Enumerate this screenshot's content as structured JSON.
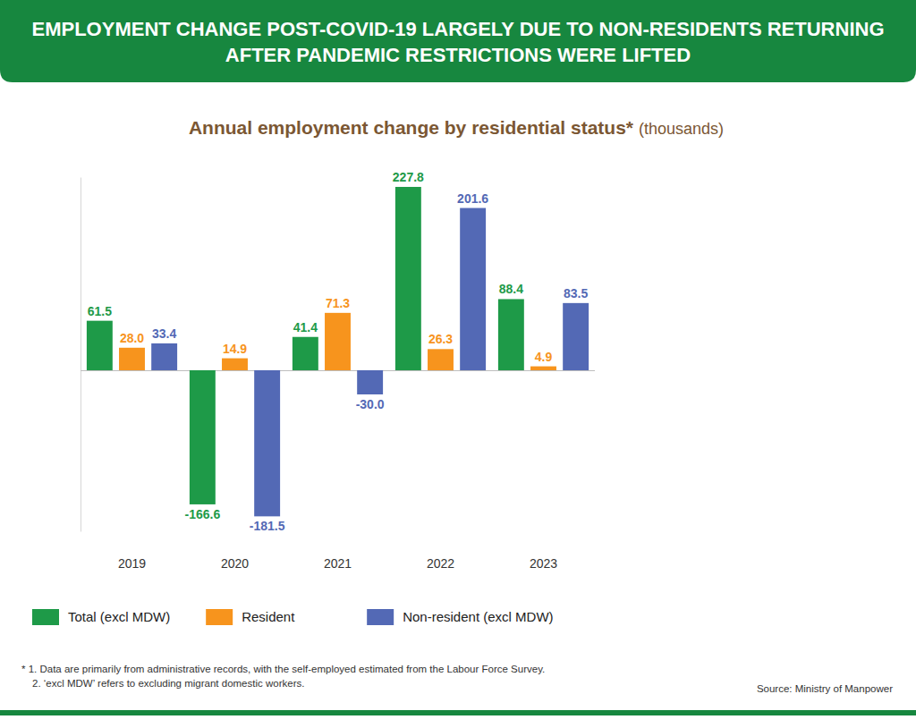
{
  "chart_data": {
    "type": "bar",
    "headline": "EMPLOYMENT CHANGE POST-COVID-19 LARGELY DUE TO NON-RESIDENTS RETURNING AFTER PANDEMIC RESTRICTIONS WERE LIFTED",
    "title": "Annual employment change by residential status*",
    "subtitle": "(thousands)",
    "categories": [
      "2019",
      "2020",
      "2021",
      "2022",
      "2023"
    ],
    "series": [
      {
        "name": "Total (excl MDW)",
        "color": "#1e9a48",
        "values": [
          61.5,
          -166.6,
          41.4,
          227.8,
          88.4
        ]
      },
      {
        "name": "Resident",
        "color": "#f7941d",
        "values": [
          28.0,
          14.9,
          71.3,
          26.3,
          4.9
        ],
        "value_labels": [
          "28.0",
          "14.9",
          "71.3",
          "26.3",
          "4.9"
        ]
      },
      {
        "name": "Non-resident (excl MDW)",
        "color": "#5369b5",
        "values": [
          33.4,
          -181.5,
          -30.0,
          201.6,
          83.5
        ],
        "value_labels": [
          "33.4",
          "-181.5",
          "-30.0",
          "201.6",
          "83.5"
        ]
      }
    ],
    "ylim": [
      -200,
      240
    ],
    "yticks": [
      0
    ],
    "tick_labels": "x",
    "data_labels": true,
    "legend": "bottom-left",
    "footnotes": [
      "* 1. Data are primarily from administrative records, with the self-employed estimated from the Labour Force Survey.",
      "2. ‘excl MDW’ refers to excluding migrant domestic workers."
    ],
    "source": "Source: Ministry of Manpower"
  }
}
